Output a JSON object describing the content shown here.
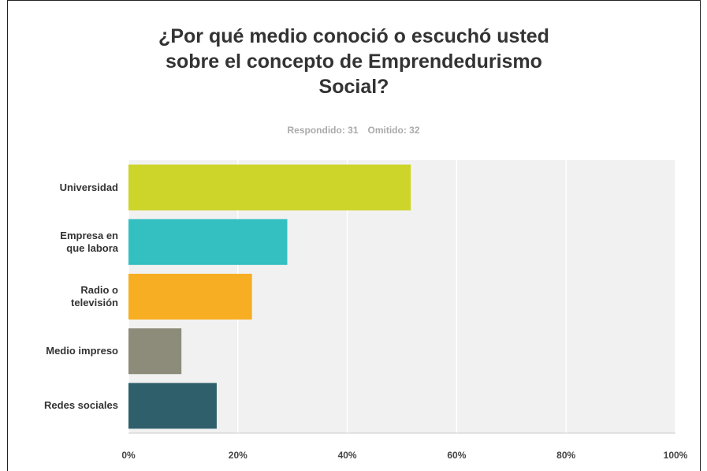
{
  "chart_data": {
    "type": "barh",
    "title": "¿Por qué medio conoció o escuchó usted sobre el concepto de Emprendedurismo Social?",
    "answered": "Respondido: 31",
    "skipped": "Omitido: 32",
    "categories": [
      "Universidad",
      "Empresa en que labora",
      "Radio o televisión",
      "Medio impreso",
      "Redes sociales"
    ],
    "values": [
      51.61,
      29.03,
      22.58,
      9.68,
      16.13
    ],
    "colors": [
      "#cdd42a",
      "#34bfc0",
      "#f7ae22",
      "#8d8c7a",
      "#2f5f6a"
    ],
    "xlim": [
      0,
      100
    ],
    "xticks": [
      {
        "value": 0,
        "label": "0%"
      },
      {
        "value": 20,
        "label": "20%"
      },
      {
        "value": 40,
        "label": "40%"
      },
      {
        "value": 60,
        "label": "60%"
      },
      {
        "value": 80,
        "label": "80%"
      },
      {
        "value": 100,
        "label": "100%"
      }
    ],
    "grid": true
  }
}
